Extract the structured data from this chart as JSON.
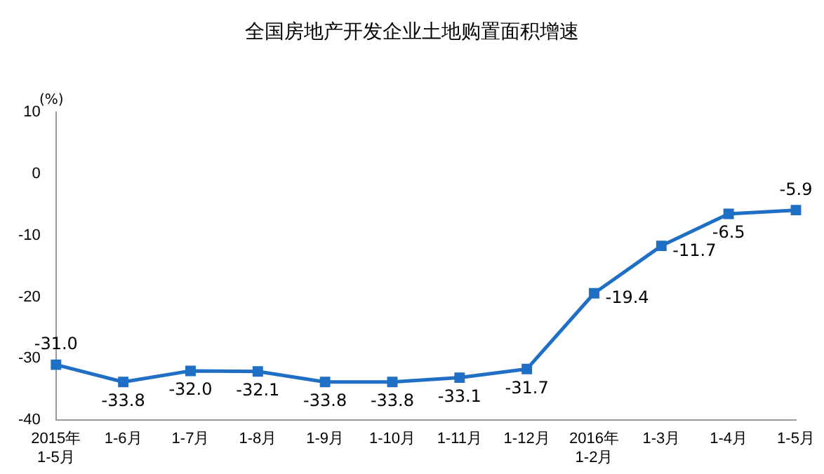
{
  "chart_data": {
    "type": "line",
    "title": "全国房地产开发企业土地购置面积增速",
    "ylabel": "(%)",
    "categories": [
      "2015年\n1-5月",
      "1-6月",
      "1-7月",
      "1-8月",
      "1-9月",
      "1-10月",
      "1-11月",
      "1-12月",
      "2016年\n1-2月",
      "1-3月",
      "1-4月",
      "1-5月"
    ],
    "series": [
      {
        "color": "#1f6fc5",
        "values": [
          -31.0,
          -33.8,
          -32.0,
          -32.1,
          -33.8,
          -33.8,
          -33.1,
          -31.7,
          -19.4,
          -11.7,
          -6.5,
          -5.9
        ],
        "value_labels": [
          "-31.0",
          "-33.8",
          "-32.0",
          "-32.1",
          "-33.8",
          "-33.8",
          "-33.1",
          "-31.7",
          "-19.4",
          "-11.7",
          "-6.5",
          "-5.9"
        ]
      }
    ],
    "ylim": [
      -40,
      10
    ],
    "yticks": [
      -40,
      -30,
      -20,
      -10,
      0,
      10
    ],
    "grid": false,
    "legend": false,
    "marker": "square",
    "line_style": "solid"
  }
}
